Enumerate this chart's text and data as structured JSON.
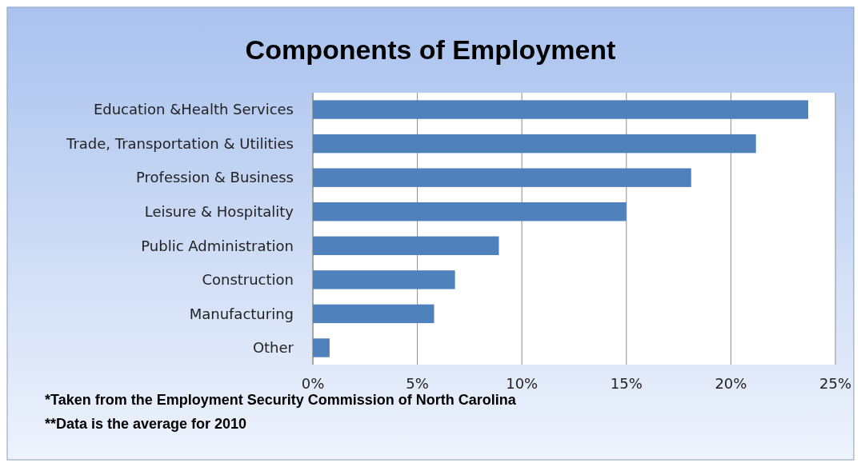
{
  "chart_data": {
    "type": "bar",
    "orientation": "horizontal",
    "title": "Components of Employment",
    "categories": [
      "Education &Health Services",
      "Trade, Transportation & Utilities",
      "Profession & Business",
      "Leisure & Hospitality",
      "Public Administration",
      "Construction",
      "Manufacturing",
      "Other"
    ],
    "values": [
      23.7,
      21.2,
      18.1,
      15.0,
      8.9,
      6.8,
      5.8,
      0.8
    ],
    "color": "#4f81bd",
    "xlim": [
      0,
      25
    ],
    "xticks": [
      {
        "value": 0,
        "label": "0%"
      },
      {
        "value": 5,
        "label": "5%"
      },
      {
        "value": 10,
        "label": "10%"
      },
      {
        "value": 15,
        "label": "15%"
      },
      {
        "value": 20,
        "label": "20%"
      },
      {
        "value": 25,
        "label": "25%"
      }
    ],
    "grid": "x",
    "annotations": [
      "*Taken from the Employment Security Commission of North Carolina",
      "**Data is the average for 2010"
    ]
  }
}
